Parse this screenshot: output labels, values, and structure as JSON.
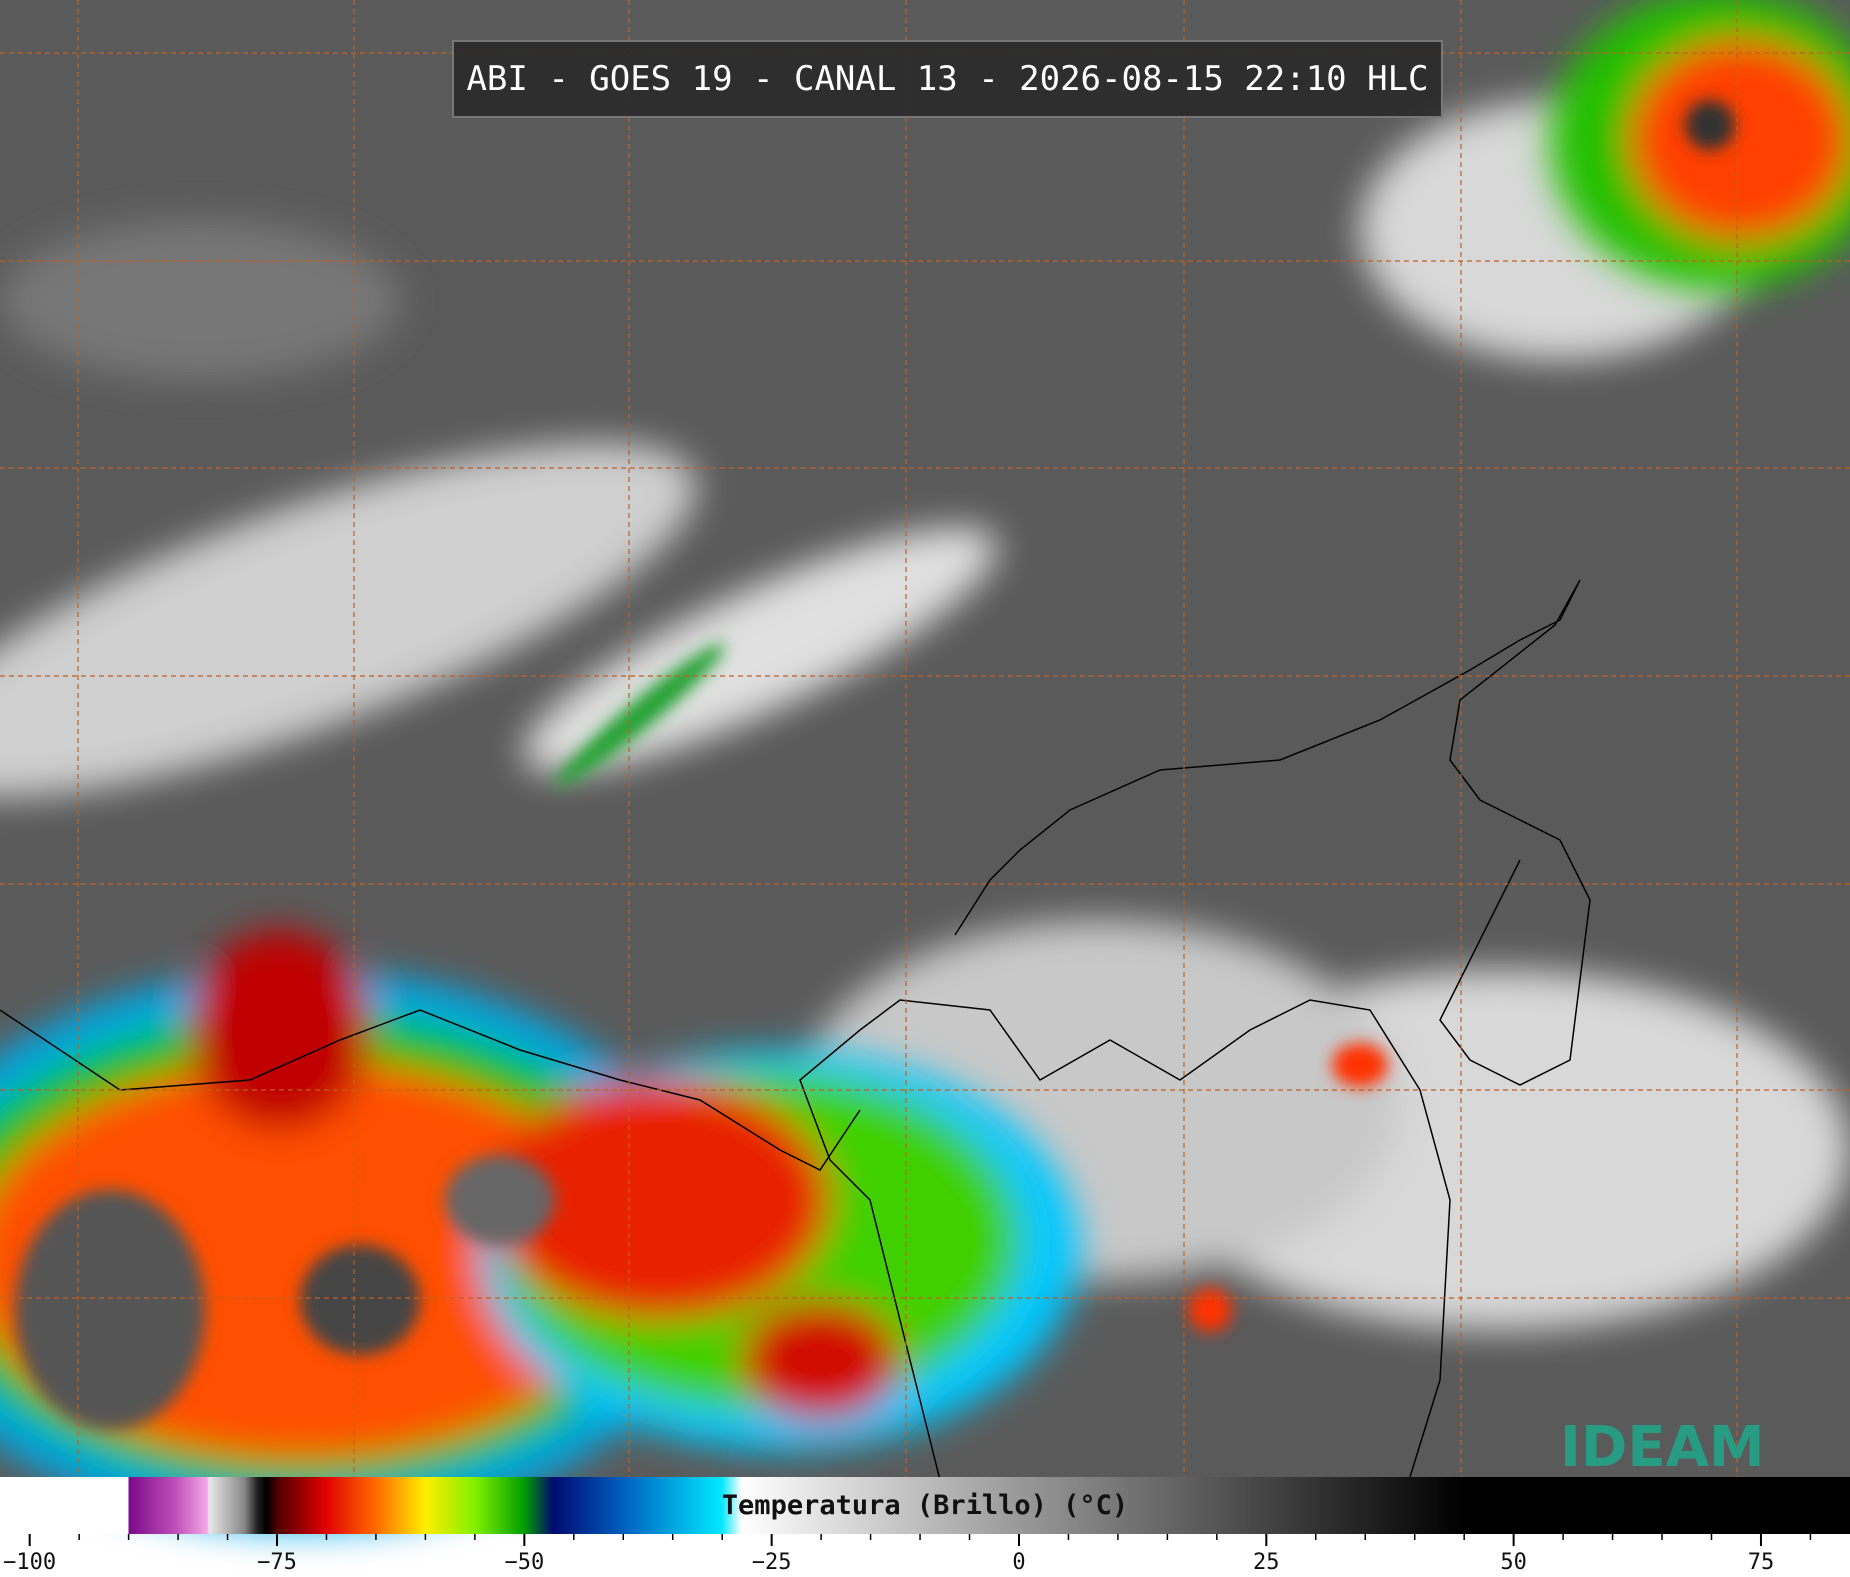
{
  "header": {
    "title": "ABI - GOES 19 - CANAL 13 - 2026-08-15 22:10 HLC"
  },
  "colorbar": {
    "label": "Temperatura (Brillo) (°C)",
    "lim": [
      -103,
      84
    ],
    "ticks": [
      {
        "value": -100,
        "label": "−100"
      },
      {
        "value": -75,
        "label": "−75"
      },
      {
        "value": -50,
        "label": "−50"
      },
      {
        "value": -25,
        "label": "−25"
      },
      0,
      25,
      50,
      75
    ]
  },
  "logo": {
    "text": "IDEAM"
  }
}
